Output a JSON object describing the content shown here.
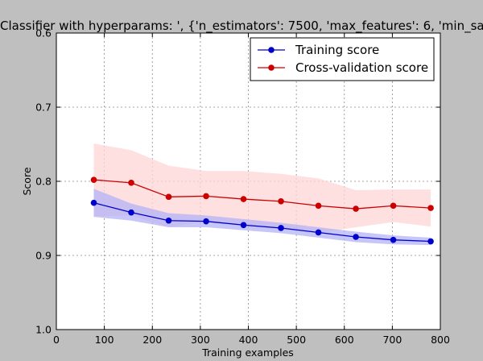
{
  "chart_data": {
    "type": "line",
    "title": "Classifier with hyperparams: ', {'n_estimators': 7500, 'max_features': 6, 'min_sa",
    "xlabel": "Training examples",
    "ylabel": "Score",
    "xlim": [
      0,
      800
    ],
    "ylim": [
      0.6,
      1.0
    ],
    "y_inverted": true,
    "x_ticks": [
      "0",
      "100",
      "200",
      "300",
      "400",
      "500",
      "600",
      "700",
      "800"
    ],
    "y_ticks": [
      "0.6",
      "0.7",
      "0.8",
      "0.9",
      "1.0"
    ],
    "grid": true,
    "legend_position": "top-right",
    "x": [
      78,
      156,
      234,
      312,
      390,
      468,
      546,
      624,
      702,
      780
    ],
    "series": [
      {
        "name": "Training score",
        "color": "#0000cc",
        "band_color": "#b3b3f5",
        "values": [
          0.829,
          0.842,
          0.853,
          0.854,
          0.859,
          0.863,
          0.869,
          0.875,
          0.879,
          0.881
        ],
        "band_upper": [
          0.81,
          0.83,
          0.843,
          0.846,
          0.851,
          0.856,
          0.862,
          0.868,
          0.873,
          0.876
        ],
        "band_lower": [
          0.848,
          0.853,
          0.862,
          0.862,
          0.866,
          0.87,
          0.876,
          0.882,
          0.885,
          0.886
        ]
      },
      {
        "name": "Cross-validation score",
        "color": "#cc0000",
        "band_color": "#ffd6d6",
        "values": [
          0.798,
          0.802,
          0.821,
          0.82,
          0.824,
          0.827,
          0.833,
          0.837,
          0.833,
          0.836
        ],
        "band_upper": [
          0.749,
          0.758,
          0.779,
          0.786,
          0.786,
          0.79,
          0.796,
          0.812,
          0.811,
          0.811
        ],
        "band_lower": [
          0.847,
          0.846,
          0.862,
          0.854,
          0.861,
          0.864,
          0.87,
          0.862,
          0.855,
          0.861
        ]
      }
    ]
  }
}
